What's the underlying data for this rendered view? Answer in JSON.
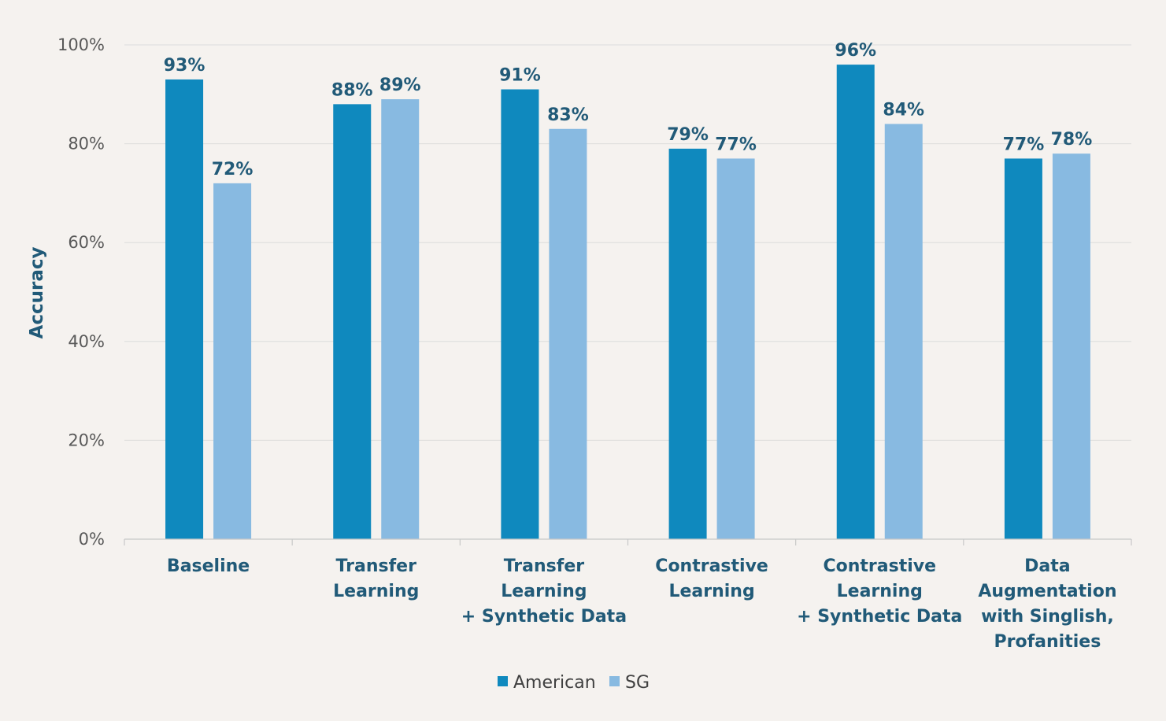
{
  "chart_data": {
    "type": "bar",
    "title": "",
    "xlabel": "",
    "ylabel": "Accuracy",
    "ylim": [
      0,
      100
    ],
    "yticks": [
      0,
      20,
      40,
      60,
      80,
      100
    ],
    "ytick_labels": [
      "0%",
      "20%",
      "40%",
      "60%",
      "80%",
      "100%"
    ],
    "grid": true,
    "legend_position": "bottom",
    "value_suffix": "%",
    "categories": [
      "Baseline",
      "Transfer\nLearning",
      "Transfer\nLearning\n+ Synthetic Data",
      "Contrastive\nLearning",
      "Contrastive\nLearning\n+ Synthetic Data",
      "Data\nAugmentation\nwith Singlish,\nProfanities"
    ],
    "series": [
      {
        "name": "American",
        "color": "#0f89be",
        "values": [
          93,
          88,
          91,
          79,
          96,
          77
        ]
      },
      {
        "name": "SG",
        "color": "#88bae1",
        "values": [
          72,
          89,
          83,
          77,
          84,
          78
        ]
      }
    ],
    "colors": {
      "background": "#f5f2ef",
      "grid": "#dcdcdc",
      "axis": "#c8c8c8",
      "label_text": "#215a78",
      "tick_text": "#595959"
    }
  }
}
